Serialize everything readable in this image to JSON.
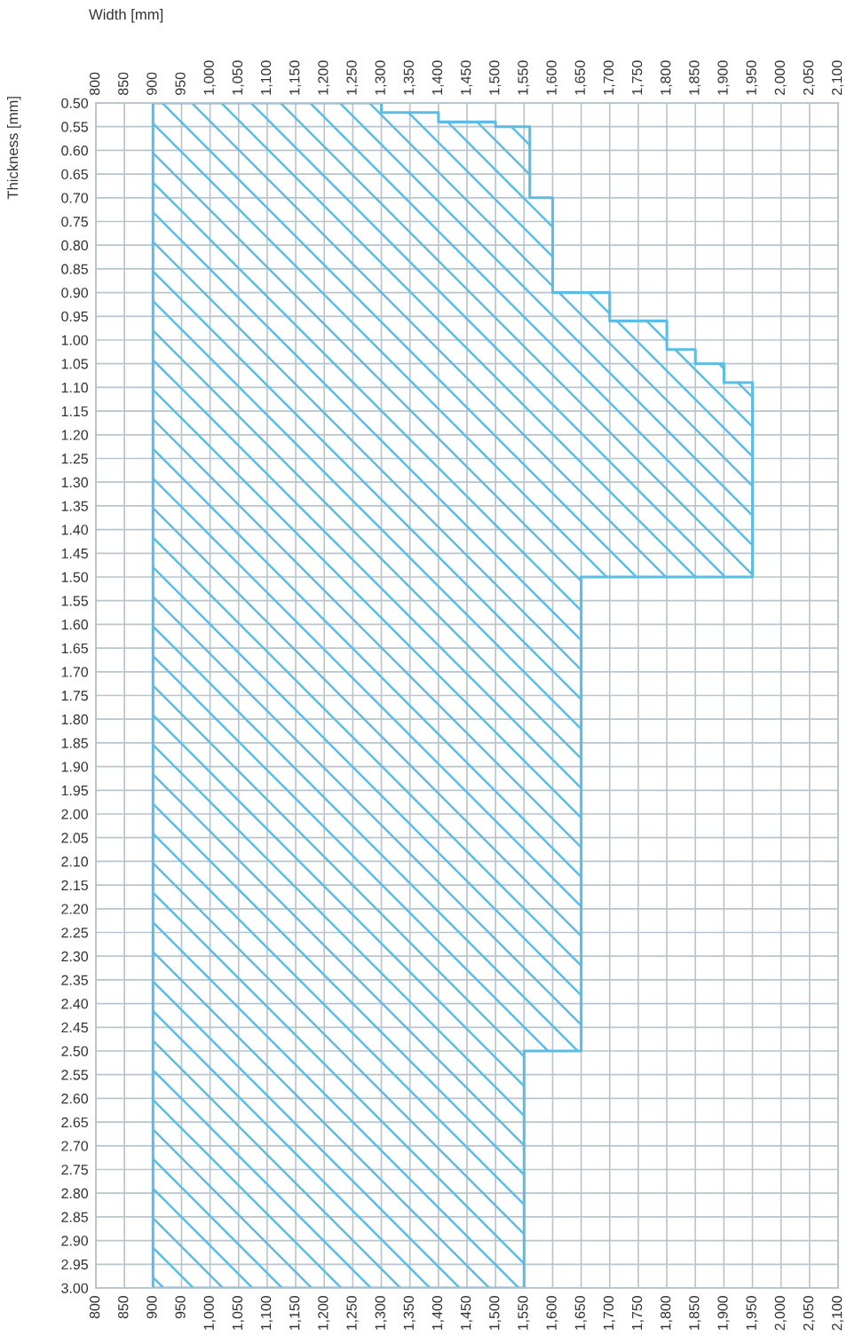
{
  "chart_data": {
    "type": "area",
    "xlabel": "Width [mm]",
    "ylabel": "Thickness [mm]",
    "series": [
      {
        "color": "#5bbde6",
        "x": [
          900,
          1300,
          1300,
          1400,
          1400,
          1500,
          1500,
          1560,
          1560,
          1600,
          1600,
          1700,
          1700,
          1800,
          1800,
          1850,
          1850,
          1900,
          1900,
          1950,
          1950,
          1650,
          1650,
          1550,
          1550,
          900
        ],
        "values": [
          0.5,
          0.5,
          0.52,
          0.52,
          0.54,
          0.54,
          0.55,
          0.55,
          0.7,
          0.7,
          0.9,
          0.9,
          0.96,
          0.96,
          1.02,
          1.02,
          1.05,
          1.05,
          1.09,
          1.09,
          1.5,
          1.5,
          2.5,
          2.5,
          3.0,
          3.0
        ]
      }
    ],
    "xlim": [
      800,
      2100
    ],
    "xticks": [
      800,
      850,
      900,
      950,
      {
        "value": 1000,
        "label": "1,000"
      },
      {
        "value": 1050,
        "label": "1,050"
      },
      {
        "value": 1100,
        "label": "1,100"
      },
      {
        "value": 1150,
        "label": "1,150"
      },
      {
        "value": 1200,
        "label": "1,200"
      },
      {
        "value": 1250,
        "label": "1,250"
      },
      {
        "value": 1300,
        "label": "1,300"
      },
      {
        "value": 1350,
        "label": "1,350"
      },
      {
        "value": 1400,
        "label": "1,400"
      },
      {
        "value": 1450,
        "label": "1,450"
      },
      {
        "value": 1500,
        "label": "1,500"
      },
      {
        "value": 1550,
        "label": "1,550"
      },
      {
        "value": 1600,
        "label": "1,600"
      },
      {
        "value": 1650,
        "label": "1,650"
      },
      {
        "value": 1700,
        "label": "1,700"
      },
      {
        "value": 1750,
        "label": "1,750"
      },
      {
        "value": 1800,
        "label": "1,800"
      },
      {
        "value": 1850,
        "label": "1,850"
      },
      {
        "value": 1900,
        "label": "1,900"
      },
      {
        "value": 1950,
        "label": "1,950"
      },
      {
        "value": 2000,
        "label": "2,000"
      },
      {
        "value": 2050,
        "label": "2,050"
      },
      {
        "value": 2100,
        "label": "2,100"
      }
    ],
    "x2lim": [
      800,
      2100
    ],
    "x2ticks": [
      800,
      850,
      900,
      950,
      {
        "value": 1000,
        "label": "1,000"
      },
      {
        "value": 1050,
        "label": "1,050"
      },
      {
        "value": 1100,
        "label": "1,100"
      },
      {
        "value": 1150,
        "label": "1,150"
      },
      {
        "value": 1200,
        "label": "1,200"
      },
      {
        "value": 1250,
        "label": "1,250"
      },
      {
        "value": 1300,
        "label": "1,300"
      },
      {
        "value": 1350,
        "label": "1,350"
      },
      {
        "value": 1400,
        "label": "1,400"
      },
      {
        "value": 1450,
        "label": "1,450"
      },
      {
        "value": 1500,
        "label": "1,500"
      },
      {
        "value": 1550,
        "label": "1,550"
      },
      {
        "value": 1600,
        "label": "1,600"
      },
      {
        "value": 1650,
        "label": "1,650"
      },
      {
        "value": 1700,
        "label": "1,700"
      },
      {
        "value": 1750,
        "label": "1,750"
      },
      {
        "value": 1800,
        "label": "1,800"
      },
      {
        "value": 1850,
        "label": "1,850"
      },
      {
        "value": 1900,
        "label": "1,900"
      },
      {
        "value": 1950,
        "label": "1,950"
      },
      {
        "value": 2000,
        "label": "2,000"
      },
      {
        "value": 2050,
        "label": "2,050"
      },
      {
        "value": 2100,
        "label": "2,100"
      }
    ],
    "ylim": [
      3.0,
      0.5
    ],
    "yticks": [
      {
        "value": 0.5,
        "label": "0.50"
      },
      {
        "value": 0.55,
        "label": "0.55"
      },
      {
        "value": 0.6,
        "label": "0.60"
      },
      {
        "value": 0.65,
        "label": "0.65"
      },
      {
        "value": 0.7,
        "label": "0.70"
      },
      {
        "value": 0.75,
        "label": "0.75"
      },
      {
        "value": 0.8,
        "label": "0.80"
      },
      {
        "value": 0.85,
        "label": "0.85"
      },
      {
        "value": 0.9,
        "label": "0.90"
      },
      {
        "value": 0.95,
        "label": "0.95"
      },
      {
        "value": 1.0,
        "label": "1.00"
      },
      {
        "value": 1.05,
        "label": "1.05"
      },
      {
        "value": 1.1,
        "label": "1.10"
      },
      {
        "value": 1.15,
        "label": "1.15"
      },
      {
        "value": 1.2,
        "label": "1.20"
      },
      {
        "value": 1.25,
        "label": "1.25"
      },
      {
        "value": 1.3,
        "label": "1.30"
      },
      {
        "value": 1.35,
        "label": "1.35"
      },
      {
        "value": 1.4,
        "label": "1.40"
      },
      {
        "value": 1.45,
        "label": "1.45"
      },
      {
        "value": 1.5,
        "label": "1.50"
      },
      {
        "value": 1.55,
        "label": "1.55"
      },
      {
        "value": 1.6,
        "label": "1.60"
      },
      {
        "value": 1.65,
        "label": "1.65"
      },
      {
        "value": 1.7,
        "label": "1.70"
      },
      {
        "value": 1.75,
        "label": "1.75"
      },
      {
        "value": 1.8,
        "label": "1.80"
      },
      {
        "value": 1.85,
        "label": "1.85"
      },
      {
        "value": 1.9,
        "label": "1.90"
      },
      {
        "value": 1.95,
        "label": "1.95"
      },
      {
        "value": 2.0,
        "label": "2.00"
      },
      {
        "value": 2.05,
        "label": "2.05"
      },
      {
        "value": 2.1,
        "label": "2.10"
      },
      {
        "value": 2.15,
        "label": "2.15"
      },
      {
        "value": 2.2,
        "label": "2.20"
      },
      {
        "value": 2.25,
        "label": "2.25"
      },
      {
        "value": 2.3,
        "label": "2.30"
      },
      {
        "value": 2.35,
        "label": "2.35"
      },
      {
        "value": 2.4,
        "label": "2.40"
      },
      {
        "value": 2.45,
        "label": "2.45"
      },
      {
        "value": 2.5,
        "label": "2.50"
      },
      {
        "value": 2.55,
        "label": "2.55"
      },
      {
        "value": 2.6,
        "label": "2.60"
      },
      {
        "value": 2.65,
        "label": "2.65"
      },
      {
        "value": 2.7,
        "label": "2.70"
      },
      {
        "value": 2.75,
        "label": "2.75"
      },
      {
        "value": 2.8,
        "label": "2.80"
      },
      {
        "value": 2.85,
        "label": "2.85"
      },
      {
        "value": 2.9,
        "label": "2.90"
      },
      {
        "value": 2.95,
        "label": "2.95"
      },
      {
        "value": 3.0,
        "label": "3.00"
      }
    ],
    "grid": true
  }
}
